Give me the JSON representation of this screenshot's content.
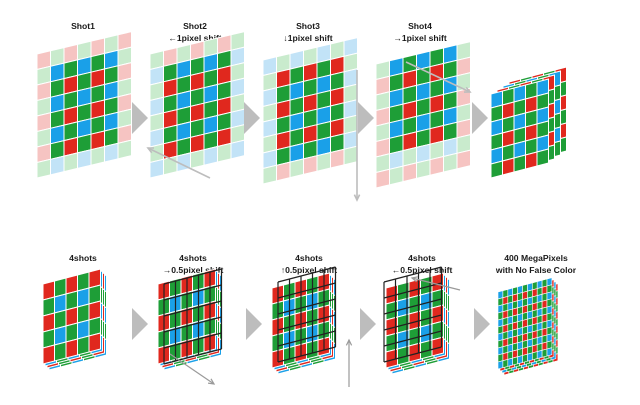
{
  "colors": {
    "red": "#e0281e",
    "green": "#1e9e37",
    "blue": "#1aa0e8",
    "red_faded": "#f6c4c2",
    "green_faded": "#c9ebcd",
    "blue_faded": "#c2e3f7",
    "grid_line": "#222222",
    "arrow": "#bdbdbd",
    "shift_arrow": "#9a9a9a"
  },
  "icons": [
    "chevron-right-icon",
    "shift-arrow-icon"
  ],
  "row1": {
    "panels": [
      {
        "title": "Shot1",
        "subtitle": ""
      },
      {
        "title": "Shot2",
        "subtitle": "←1pixel shift"
      },
      {
        "title": "Shot3",
        "subtitle": "↓1pixel shift"
      },
      {
        "title": "Shot4",
        "subtitle": "→1pixel shift"
      },
      {
        "title": "",
        "subtitle": ""
      }
    ]
  },
  "row2": {
    "panels": [
      {
        "title": "4shots",
        "subtitle": ""
      },
      {
        "title": "4shots",
        "subtitle": "→0.5pixel shift"
      },
      {
        "title": "4shots",
        "subtitle": "↑0.5pixel shift"
      },
      {
        "title": "4shots",
        "subtitle": "←0.5pixel shift"
      },
      {
        "title": "400 MegaPixels",
        "subtitle": "with No False Color"
      }
    ]
  }
}
